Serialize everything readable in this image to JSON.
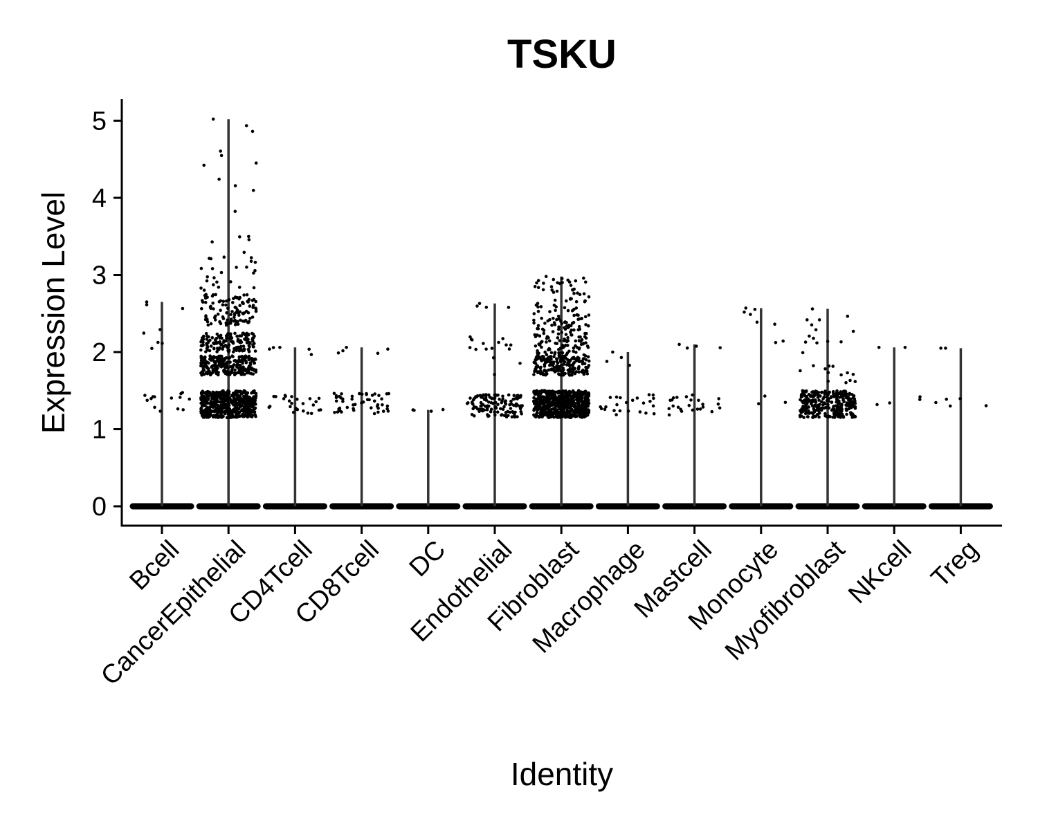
{
  "chart_data": {
    "type": "scatter",
    "subtype": "violin-jitter",
    "title": "TSKU",
    "xlabel": "Identity",
    "ylabel": "Expression Level",
    "ylim": [
      -0.25,
      5.25
    ],
    "yticks": [
      0,
      1,
      2,
      3,
      4,
      5
    ],
    "categories": [
      "Bcell",
      "CancerEpithelial",
      "CD4Tcell",
      "CD8Tcell",
      "DC",
      "Endothelial",
      "Fibroblast",
      "Macrophage",
      "Mastcell",
      "Monocyte",
      "Myofibroblast",
      "NKcell",
      "Treg"
    ],
    "max_values": [
      2.65,
      5.02,
      2.06,
      2.06,
      1.25,
      2.63,
      2.98,
      2.0,
      2.1,
      2.57,
      2.56,
      2.06,
      2.05
    ],
    "expressed_bands": [
      [
        [
          1.2,
          1.5,
          14
        ],
        [
          2.0,
          2.3,
          5
        ],
        [
          2.5,
          2.65,
          2
        ]
      ],
      [
        [
          1.15,
          1.5,
          520
        ],
        [
          1.7,
          1.95,
          260
        ],
        [
          2.0,
          2.25,
          150
        ],
        [
          2.35,
          2.75,
          110
        ],
        [
          2.8,
          3.3,
          25
        ],
        [
          3.3,
          5.02,
          14
        ]
      ],
      [
        [
          1.2,
          1.45,
          26
        ],
        [
          1.95,
          2.06,
          4
        ]
      ],
      [
        [
          1.2,
          1.47,
          48
        ],
        [
          1.9,
          2.06,
          4
        ]
      ],
      [
        [
          1.23,
          1.26,
          3
        ]
      ],
      [
        [
          1.15,
          1.45,
          130
        ],
        [
          1.7,
          2.2,
          16
        ],
        [
          2.55,
          2.63,
          3
        ]
      ],
      [
        [
          1.15,
          1.5,
          650
        ],
        [
          1.7,
          1.95,
          200
        ],
        [
          1.95,
          2.4,
          120
        ],
        [
          2.4,
          2.98,
          70
        ]
      ],
      [
        [
          1.18,
          1.45,
          24
        ],
        [
          1.75,
          2.0,
          3
        ]
      ],
      [
        [
          1.18,
          1.45,
          24
        ],
        [
          2.0,
          2.1,
          3
        ]
      ],
      [
        [
          1.18,
          1.45,
          3
        ],
        [
          2.1,
          2.57,
          7
        ]
      ],
      [
        [
          1.15,
          1.5,
          300
        ],
        [
          1.6,
          2.0,
          14
        ],
        [
          2.1,
          2.56,
          12
        ]
      ],
      [
        [
          1.27,
          1.47,
          4
        ],
        [
          2.06,
          2.06,
          1
        ]
      ],
      [
        [
          1.3,
          1.47,
          5
        ],
        [
          2.04,
          2.05,
          1
        ]
      ]
    ]
  }
}
